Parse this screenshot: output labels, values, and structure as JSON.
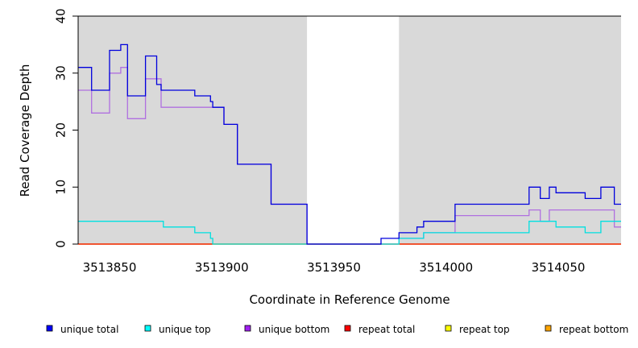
{
  "chart_data": {
    "type": "line",
    "xlabel": "Coordinate in Reference Genome",
    "ylabel": "Read Coverage Depth",
    "xlim": [
      3513836,
      3514078
    ],
    "ylim": [
      0,
      40
    ],
    "x_ticks": [
      3513850,
      3513900,
      3513950,
      3514000,
      3514050
    ],
    "x_tick_labels": [
      "3513850",
      "3513900",
      "3513950",
      "3514000",
      "3514050"
    ],
    "y_ticks": [
      0,
      10,
      20,
      30,
      40
    ],
    "y_tick_labels": [
      "0",
      "10",
      "20",
      "30",
      "40"
    ],
    "shaded_regions": [
      [
        3513836,
        3513938
      ],
      [
        3513979,
        3514078
      ]
    ],
    "series": [
      {
        "name": "unique total",
        "color": "#0000dd",
        "steps": [
          [
            3513836,
            31
          ],
          [
            3513842,
            27
          ],
          [
            3513850,
            34
          ],
          [
            3513855,
            35
          ],
          [
            3513858,
            26
          ],
          [
            3513866,
            33
          ],
          [
            3513871,
            28
          ],
          [
            3513873,
            27
          ],
          [
            3513888,
            26
          ],
          [
            3513895,
            25
          ],
          [
            3513896,
            24
          ],
          [
            3513901,
            21
          ],
          [
            3513907,
            14
          ],
          [
            3513922,
            7
          ],
          [
            3513938,
            0
          ],
          [
            3513971,
            1
          ],
          [
            3513979,
            2
          ],
          [
            3513987,
            3
          ],
          [
            3513990,
            4
          ],
          [
            3514004,
            7
          ],
          [
            3514037,
            10
          ],
          [
            3514042,
            8
          ],
          [
            3514046,
            10
          ],
          [
            3514049,
            9
          ],
          [
            3514062,
            8
          ],
          [
            3514069,
            10
          ],
          [
            3514075,
            7
          ],
          [
            3514078,
            7
          ]
        ]
      },
      {
        "name": "unique top",
        "color": "#00e0e0",
        "steps": [
          [
            3513836,
            4
          ],
          [
            3513874,
            3
          ],
          [
            3513888,
            2
          ],
          [
            3513895,
            1
          ],
          [
            3513896,
            0
          ],
          [
            3513938,
            0
          ],
          [
            3513979,
            1
          ],
          [
            3513990,
            2
          ],
          [
            3514037,
            4
          ],
          [
            3514042,
            4
          ],
          [
            3514049,
            3
          ],
          [
            3514062,
            2
          ],
          [
            3514069,
            4
          ],
          [
            3514078,
            4
          ]
        ]
      },
      {
        "name": "unique bottom",
        "color": "#b070e0",
        "steps": [
          [
            3513836,
            27
          ],
          [
            3513842,
            23
          ],
          [
            3513850,
            30
          ],
          [
            3513855,
            31
          ],
          [
            3513858,
            22
          ],
          [
            3513866,
            29
          ],
          [
            3513873,
            24
          ],
          [
            3513896,
            24
          ],
          [
            3513901,
            21
          ],
          [
            3513907,
            14
          ],
          [
            3513922,
            7
          ],
          [
            3513938,
            0
          ],
          [
            3513979,
            1
          ],
          [
            3513990,
            2
          ],
          [
            3514004,
            5
          ],
          [
            3514037,
            6
          ],
          [
            3514042,
            4
          ],
          [
            3514046,
            6
          ],
          [
            3514075,
            3
          ],
          [
            3514078,
            3
          ]
        ]
      },
      {
        "name": "repeat total",
        "color": "#ee0000",
        "steps": [
          [
            3513836,
            0
          ],
          [
            3514078,
            0
          ]
        ]
      },
      {
        "name": "repeat top",
        "color": "#ffff00",
        "steps": [
          [
            3513836,
            0
          ],
          [
            3514078,
            0
          ]
        ]
      },
      {
        "name": "repeat bottom",
        "color": "#ffa500",
        "steps": [
          [
            3513836,
            0
          ],
          [
            3514078,
            0
          ]
        ]
      }
    ],
    "legend": {
      "placement": "bottom",
      "items": [
        {
          "label": "unique total",
          "color": "#0000ff"
        },
        {
          "label": "unique top",
          "color": "#00ffff"
        },
        {
          "label": "unique bottom",
          "color": "#a020f0"
        },
        {
          "label": "repeat total",
          "color": "#ff0000"
        },
        {
          "label": "repeat top",
          "color": "#ffff00"
        },
        {
          "label": "repeat bottom",
          "color": "#ffa500"
        }
      ]
    }
  }
}
